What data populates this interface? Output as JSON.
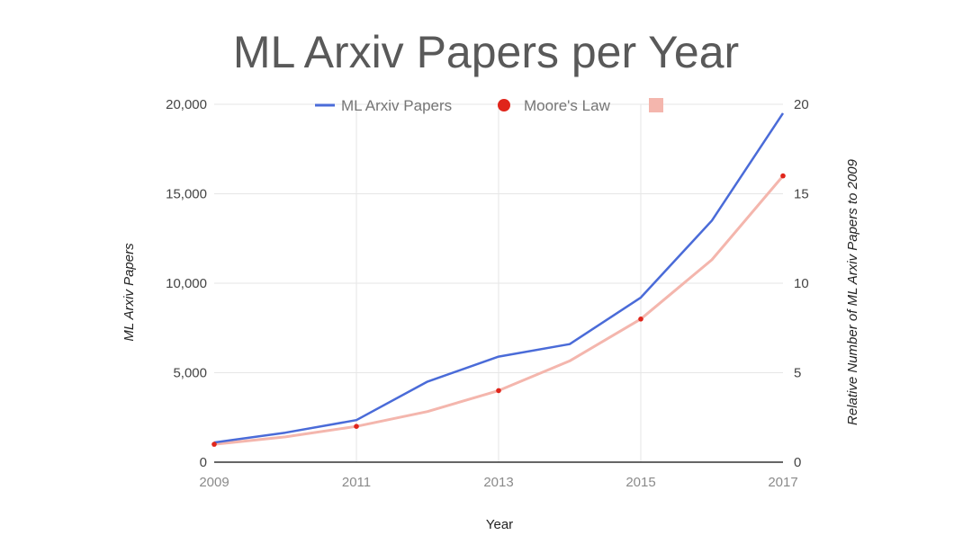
{
  "chart_data": {
    "type": "line",
    "title": "ML Arxiv Papers per Year",
    "xlabel": "Year",
    "ylabel": "ML Arxiv Papers",
    "y2label": "Relative Number of ML Arxiv Papers  to 2009",
    "x_tick_labels": [
      "2009",
      "2011",
      "2013",
      "2015",
      "2017"
    ],
    "y_tick_labels": [
      "0",
      "5,000",
      "10,000",
      "15,000",
      "20,000"
    ],
    "y2_tick_labels": [
      "0",
      "5",
      "10",
      "15",
      "20"
    ],
    "xlim": [
      2009,
      2017
    ],
    "ylim": [
      0,
      20000
    ],
    "y2lim": [
      0,
      20
    ],
    "grid": true,
    "legend_position": "top",
    "legend": [
      "ML Arxiv Papers",
      "Moore's Law",
      ""
    ],
    "series": [
      {
        "name": "ML Arxiv Papers",
        "axis": "left",
        "style": "line",
        "color": "#4a6bd8",
        "x": [
          2009,
          2010,
          2011,
          2012,
          2013,
          2014,
          2015,
          2016,
          2017
        ],
        "y": [
          1100,
          1650,
          2350,
          4500,
          5900,
          6600,
          9200,
          13500,
          19500
        ]
      },
      {
        "name": "Moore's Law",
        "axis": "right",
        "style": "points",
        "color": "#e0251b",
        "x": [
          2009,
          2011,
          2013,
          2015,
          2017
        ],
        "y": [
          1,
          2,
          4,
          8,
          16
        ]
      },
      {
        "name": "",
        "axis": "right",
        "style": "trend",
        "color": "#f4b6ad",
        "x": [
          2009,
          2010,
          2011,
          2012,
          2013,
          2014,
          2015,
          2016,
          2017
        ],
        "y": [
          1,
          1.41,
          2,
          2.83,
          4,
          5.66,
          8,
          11.31,
          16
        ]
      }
    ]
  }
}
